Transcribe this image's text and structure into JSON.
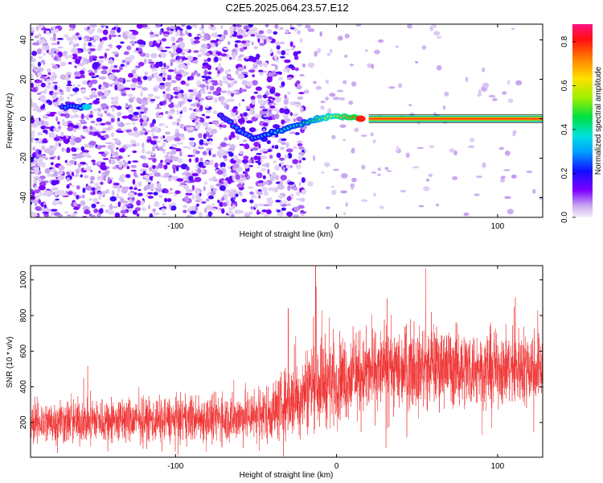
{
  "title": "C2E5.2025.064.23.57.E12",
  "chart_data": [
    {
      "type": "heatmap",
      "xlabel": "Height of straight line (km)",
      "ylabel": "Frequency (Hz)",
      "xlim": [
        -190,
        128
      ],
      "ylim": [
        -50,
        48
      ],
      "xticks": [
        -100,
        0,
        100
      ],
      "yticks": [
        -40,
        -20,
        0,
        20,
        40
      ],
      "colorbar": {
        "label": "Normalized spectral amplitude",
        "range": [
          0,
          0.88
        ],
        "ticks": [
          0.0,
          0.2,
          0.4,
          0.6,
          0.8
        ]
      },
      "carrier_line_hz": 0,
      "signal_track": [
        {
          "x": -170,
          "y": 6,
          "amp": 0.3
        },
        {
          "x": -155,
          "y": 6,
          "amp": 0.35
        },
        {
          "x": -72,
          "y": 2,
          "amp": 0.25
        },
        {
          "x": -60,
          "y": -6,
          "amp": 0.3
        },
        {
          "x": -52,
          "y": -10,
          "amp": 0.3
        },
        {
          "x": -40,
          "y": -7,
          "amp": 0.35
        },
        {
          "x": -30,
          "y": -5,
          "amp": 0.4
        },
        {
          "x": -20,
          "y": -2,
          "amp": 0.4
        },
        {
          "x": -12,
          "y": 0,
          "amp": 0.5
        },
        {
          "x": -5,
          "y": 1,
          "amp": 0.6
        },
        {
          "x": 5,
          "y": 1,
          "amp": 0.7
        },
        {
          "x": 15,
          "y": 0,
          "amp": 0.8
        },
        {
          "x": 128,
          "y": 0,
          "amp": 0.85
        }
      ]
    },
    {
      "type": "line",
      "xlabel": "Height of straight line (km)",
      "ylabel": "SNR (10 * v/v)",
      "xlim": [
        -190,
        128
      ],
      "ylim": [
        5,
        1080
      ],
      "xticks": [
        -100,
        0,
        100
      ],
      "yticks": [
        200,
        400,
        600,
        800,
        1000
      ],
      "series_color": "#f03030",
      "envelope": {
        "x": [
          -190,
          -150,
          -100,
          -60,
          -40,
          -25,
          -15,
          -5,
          10,
          30,
          60,
          90,
          128
        ],
        "mean": [
          200,
          210,
          215,
          230,
          260,
          340,
          420,
          440,
          460,
          500,
          520,
          500,
          520
        ],
        "spread": [
          90,
          95,
          95,
          105,
          125,
          160,
          190,
          185,
          170,
          170,
          165,
          160,
          160
        ]
      },
      "peaks": [
        {
          "x": -13,
          "y": 1080
        },
        {
          "x": -30,
          "y": 840
        }
      ]
    }
  ]
}
